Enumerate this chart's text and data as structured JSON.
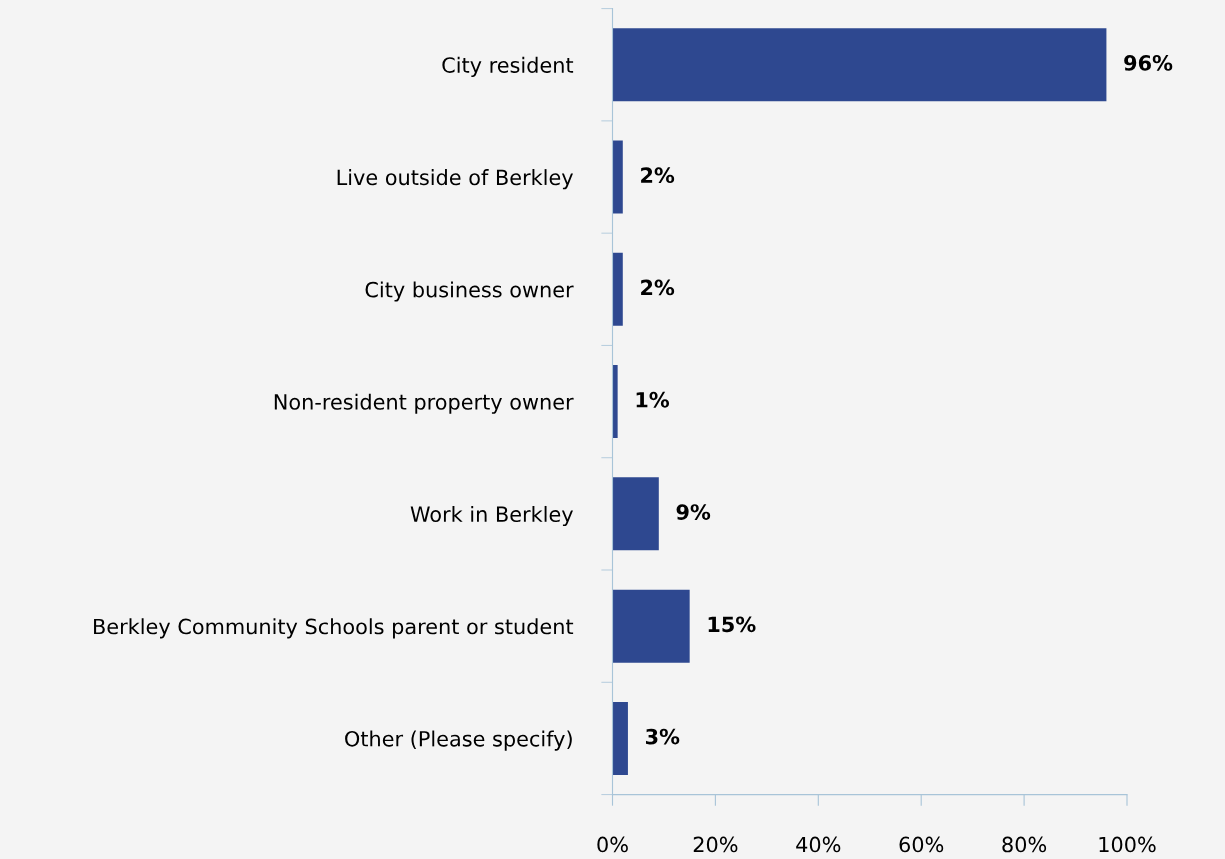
{
  "chart_data": {
    "type": "bar",
    "orientation": "horizontal",
    "categories": [
      "City resident",
      "Live outside of Berkley",
      "City business owner",
      "Non-resident property owner",
      "Work in Berkley",
      "Berkley Community Schools parent or student",
      "Other (Please specify)"
    ],
    "values": [
      96,
      2,
      2,
      1,
      9,
      15,
      3
    ],
    "value_labels": [
      "96%",
      "2%",
      "2%",
      "1%",
      "9%",
      "15%",
      "3%"
    ],
    "color": "#2e4890",
    "xlim": [
      0,
      100
    ],
    "xticks": [
      {
        "value": 0,
        "label": "0%"
      },
      {
        "value": 20,
        "label": "20%"
      },
      {
        "value": 40,
        "label": "40%"
      },
      {
        "value": 60,
        "label": "60%"
      },
      {
        "value": 80,
        "label": "80%"
      },
      {
        "value": 100,
        "label": "100%"
      }
    ],
    "grid": false,
    "legend": false
  }
}
